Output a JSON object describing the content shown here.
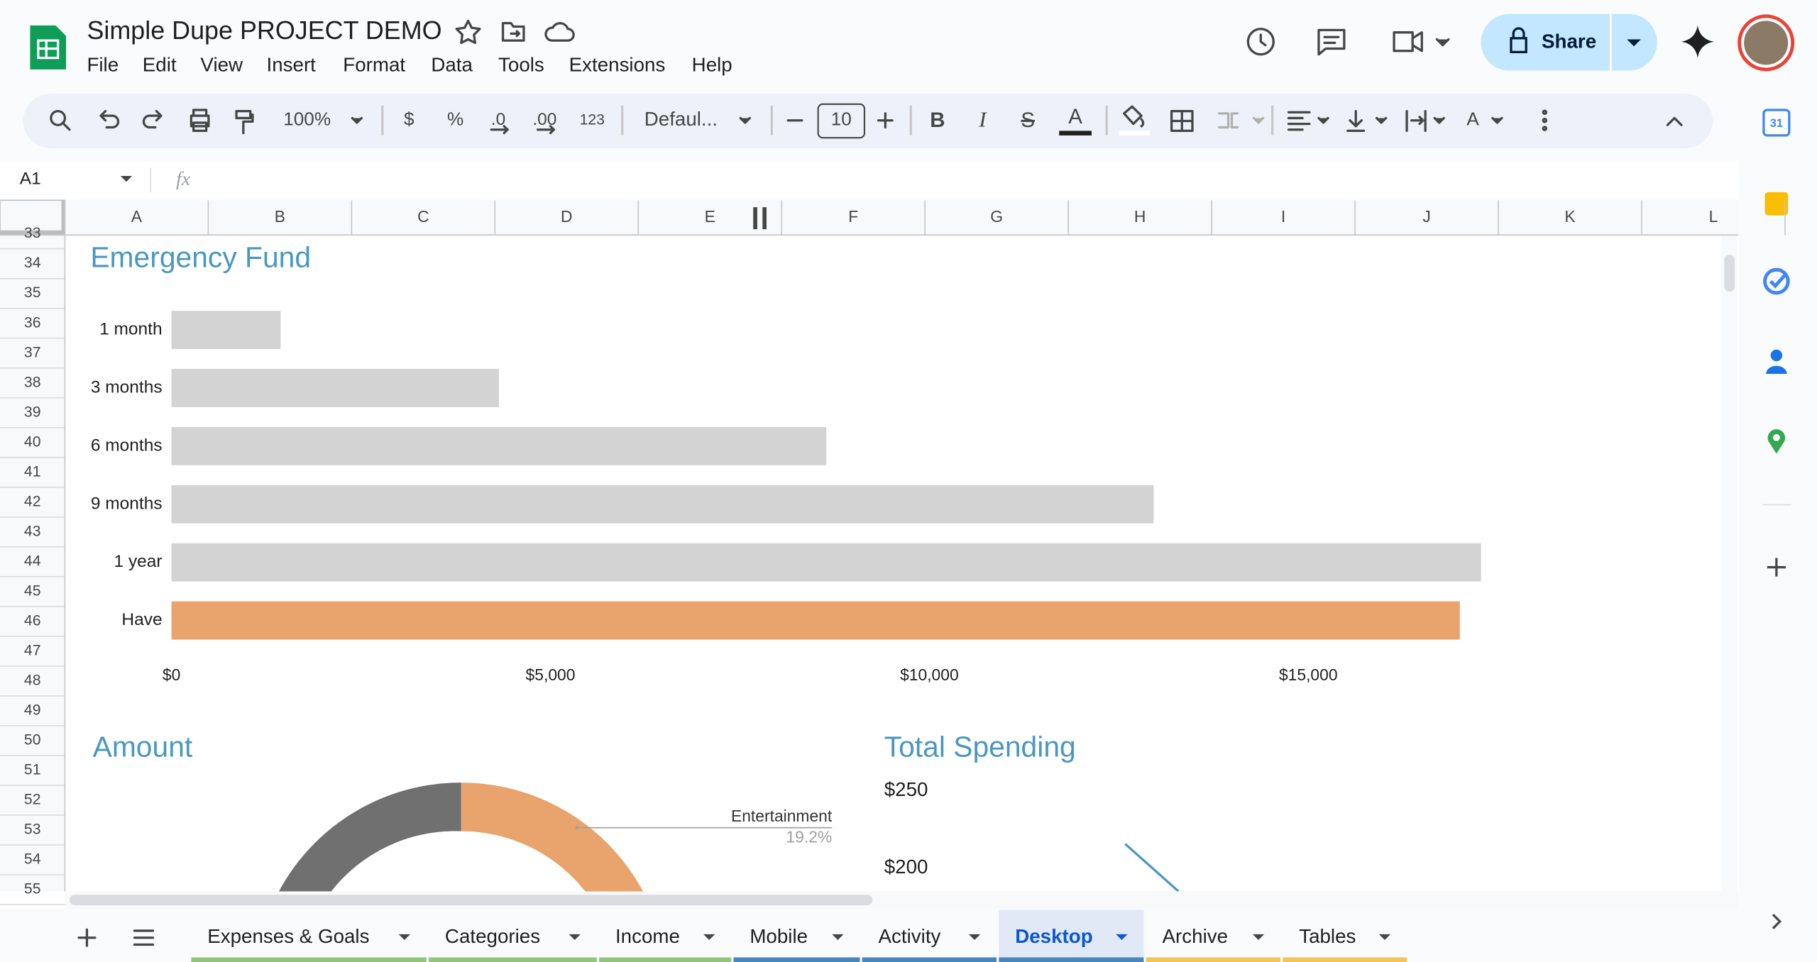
{
  "header": {
    "title": "Simple Dupe PROJECT DEMO",
    "menu": [
      "File",
      "Edit",
      "View",
      "Insert",
      "Format",
      "Data",
      "Tools",
      "Extensions",
      "Help"
    ],
    "share": "Share"
  },
  "toolbar": {
    "zoom": "100%",
    "currency": "$",
    "percent": "%",
    "decrease_decimal": ".0",
    "increase_decimal": ".00",
    "format": "123",
    "font": "Defaul...",
    "font_size": "10",
    "bold": "B",
    "italic": "I",
    "strike": "S",
    "text_color": "A"
  },
  "formula_bar": {
    "cell": "A1",
    "fx": "fx"
  },
  "columns": [
    "A",
    "B",
    "C",
    "D",
    "E",
    "F",
    "G",
    "H",
    "I",
    "J",
    "K",
    "L"
  ],
  "rows": [
    33,
    34,
    35,
    36,
    37,
    38,
    39,
    40,
    41,
    42,
    43,
    44,
    45,
    46,
    47,
    48,
    49,
    50,
    51,
    52,
    53,
    54,
    55
  ],
  "chart_data": [
    {
      "type": "bar",
      "orientation": "horizontal",
      "title": "Emergency Fund",
      "categories": [
        "1 month",
        "3 months",
        "6 months",
        "9 months",
        "1 year",
        "Have"
      ],
      "values": [
        1440,
        4320,
        8640,
        12960,
        17280,
        17000
      ],
      "colors": [
        "#d3d3d3",
        "#d3d3d3",
        "#d3d3d3",
        "#d3d3d3",
        "#d3d3d3",
        "#e8a46c"
      ],
      "xlim": [
        0,
        20000
      ],
      "xticks": [
        {
          "value": 0,
          "label": "$0"
        },
        {
          "value": 5000,
          "label": "$5,000"
        },
        {
          "value": 10000,
          "label": "$10,000"
        },
        {
          "value": 15000,
          "label": "$15,000"
        }
      ]
    },
    {
      "type": "pie",
      "title": "Amount",
      "categories": [
        "Entertainment"
      ],
      "values": [
        19.2
      ],
      "value_labels": [
        "19.2%"
      ],
      "colors": [
        "#e8a46c"
      ]
    },
    {
      "type": "line",
      "title": "Total Spending",
      "ylim": [
        0,
        250
      ],
      "yticks": [
        {
          "value": 250,
          "label": "$250"
        },
        {
          "value": 200,
          "label": "$200"
        }
      ]
    }
  ],
  "sidebar": {
    "calendar": "31"
  },
  "sheet_tabs": [
    {
      "name": "Expenses & Goals",
      "color": "#93c47d"
    },
    {
      "name": "Categories",
      "color": "#93c47d"
    },
    {
      "name": "Income",
      "color": "#93c47d"
    },
    {
      "name": "Mobile",
      "color": "#4a86b8"
    },
    {
      "name": "Activity",
      "color": "#4a86b8"
    },
    {
      "name": "Desktop",
      "color": "#4a86b8"
    },
    {
      "name": "Archive",
      "color": "#f1c45c"
    },
    {
      "name": "Tables",
      "color": "#f1c45c"
    }
  ],
  "active_tab_index": 5
}
